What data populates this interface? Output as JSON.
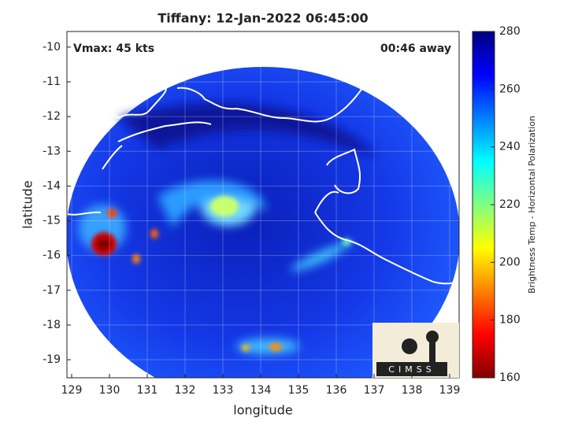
{
  "chart_data": {
    "type": "map",
    "title": "Tiffany: 12-Jan-2022 06:45:00",
    "annotations": [
      "Vmax: 45 kts",
      "00:46 away"
    ],
    "x_label": "longitude",
    "y_label": "latitude",
    "xlim": [
      128.875,
      139.25
    ],
    "xticks": [
      129,
      130,
      131,
      132,
      133,
      134,
      135,
      136,
      137,
      138,
      139
    ],
    "ylim": [
      -19.52,
      -9.55
    ],
    "yticks": [
      -10,
      -11,
      -12,
      -13,
      -14,
      -15,
      -16,
      -17,
      -18,
      -19
    ],
    "grid": true,
    "colorbar": {
      "label": "Brightness Temp - Horizontal Polarization",
      "colormap": "jet",
      "lim": [
        160,
        280
      ],
      "ticks": [
        160,
        180,
        200,
        220,
        240,
        260,
        280
      ]
    },
    "logo": "CIMSS"
  }
}
